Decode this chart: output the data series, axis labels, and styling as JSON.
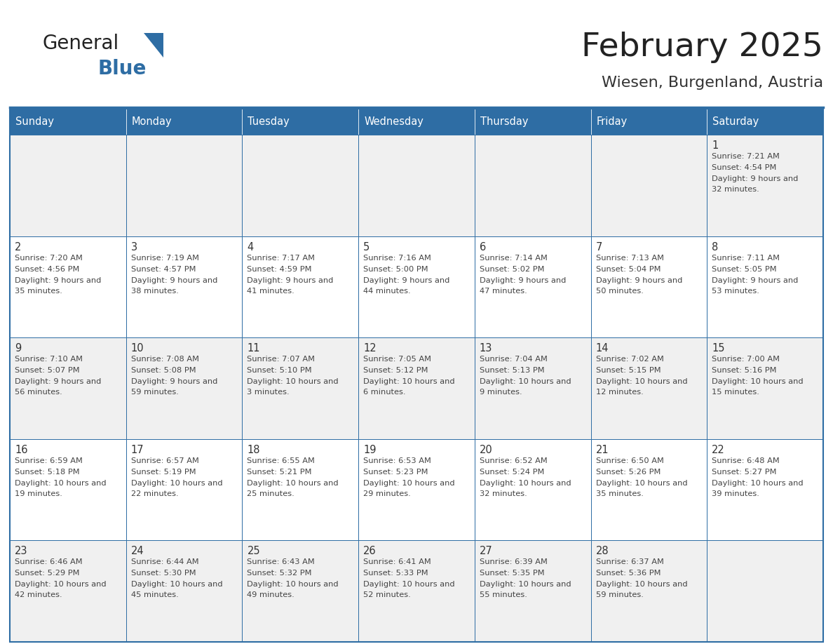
{
  "title": "February 2025",
  "subtitle": "Wiesen, Burgenland, Austria",
  "header_bg": "#2E6DA4",
  "header_text_color": "#FFFFFF",
  "border_color": "#2E6DA4",
  "day_headers": [
    "Sunday",
    "Monday",
    "Tuesday",
    "Wednesday",
    "Thursday",
    "Friday",
    "Saturday"
  ],
  "title_color": "#222222",
  "subtitle_color": "#333333",
  "text_color": "#444444",
  "days": [
    {
      "day": 1,
      "col": 6,
      "row": 0,
      "sunrise": "7:21 AM",
      "sunset": "4:54 PM",
      "daylight": "9 hours and 32 minutes"
    },
    {
      "day": 2,
      "col": 0,
      "row": 1,
      "sunrise": "7:20 AM",
      "sunset": "4:56 PM",
      "daylight": "9 hours and 35 minutes"
    },
    {
      "day": 3,
      "col": 1,
      "row": 1,
      "sunrise": "7:19 AM",
      "sunset": "4:57 PM",
      "daylight": "9 hours and 38 minutes"
    },
    {
      "day": 4,
      "col": 2,
      "row": 1,
      "sunrise": "7:17 AM",
      "sunset": "4:59 PM",
      "daylight": "9 hours and 41 minutes"
    },
    {
      "day": 5,
      "col": 3,
      "row": 1,
      "sunrise": "7:16 AM",
      "sunset": "5:00 PM",
      "daylight": "9 hours and 44 minutes"
    },
    {
      "day": 6,
      "col": 4,
      "row": 1,
      "sunrise": "7:14 AM",
      "sunset": "5:02 PM",
      "daylight": "9 hours and 47 minutes"
    },
    {
      "day": 7,
      "col": 5,
      "row": 1,
      "sunrise": "7:13 AM",
      "sunset": "5:04 PM",
      "daylight": "9 hours and 50 minutes"
    },
    {
      "day": 8,
      "col": 6,
      "row": 1,
      "sunrise": "7:11 AM",
      "sunset": "5:05 PM",
      "daylight": "9 hours and 53 minutes"
    },
    {
      "day": 9,
      "col": 0,
      "row": 2,
      "sunrise": "7:10 AM",
      "sunset": "5:07 PM",
      "daylight": "9 hours and 56 minutes"
    },
    {
      "day": 10,
      "col": 1,
      "row": 2,
      "sunrise": "7:08 AM",
      "sunset": "5:08 PM",
      "daylight": "9 hours and 59 minutes"
    },
    {
      "day": 11,
      "col": 2,
      "row": 2,
      "sunrise": "7:07 AM",
      "sunset": "5:10 PM",
      "daylight": "10 hours and 3 minutes"
    },
    {
      "day": 12,
      "col": 3,
      "row": 2,
      "sunrise": "7:05 AM",
      "sunset": "5:12 PM",
      "daylight": "10 hours and 6 minutes"
    },
    {
      "day": 13,
      "col": 4,
      "row": 2,
      "sunrise": "7:04 AM",
      "sunset": "5:13 PM",
      "daylight": "10 hours and 9 minutes"
    },
    {
      "day": 14,
      "col": 5,
      "row": 2,
      "sunrise": "7:02 AM",
      "sunset": "5:15 PM",
      "daylight": "10 hours and 12 minutes"
    },
    {
      "day": 15,
      "col": 6,
      "row": 2,
      "sunrise": "7:00 AM",
      "sunset": "5:16 PM",
      "daylight": "10 hours and 15 minutes"
    },
    {
      "day": 16,
      "col": 0,
      "row": 3,
      "sunrise": "6:59 AM",
      "sunset": "5:18 PM",
      "daylight": "10 hours and 19 minutes"
    },
    {
      "day": 17,
      "col": 1,
      "row": 3,
      "sunrise": "6:57 AM",
      "sunset": "5:19 PM",
      "daylight": "10 hours and 22 minutes"
    },
    {
      "day": 18,
      "col": 2,
      "row": 3,
      "sunrise": "6:55 AM",
      "sunset": "5:21 PM",
      "daylight": "10 hours and 25 minutes"
    },
    {
      "day": 19,
      "col": 3,
      "row": 3,
      "sunrise": "6:53 AM",
      "sunset": "5:23 PM",
      "daylight": "10 hours and 29 minutes"
    },
    {
      "day": 20,
      "col": 4,
      "row": 3,
      "sunrise": "6:52 AM",
      "sunset": "5:24 PM",
      "daylight": "10 hours and 32 minutes"
    },
    {
      "day": 21,
      "col": 5,
      "row": 3,
      "sunrise": "6:50 AM",
      "sunset": "5:26 PM",
      "daylight": "10 hours and 35 minutes"
    },
    {
      "day": 22,
      "col": 6,
      "row": 3,
      "sunrise": "6:48 AM",
      "sunset": "5:27 PM",
      "daylight": "10 hours and 39 minutes"
    },
    {
      "day": 23,
      "col": 0,
      "row": 4,
      "sunrise": "6:46 AM",
      "sunset": "5:29 PM",
      "daylight": "10 hours and 42 minutes"
    },
    {
      "day": 24,
      "col": 1,
      "row": 4,
      "sunrise": "6:44 AM",
      "sunset": "5:30 PM",
      "daylight": "10 hours and 45 minutes"
    },
    {
      "day": 25,
      "col": 2,
      "row": 4,
      "sunrise": "6:43 AM",
      "sunset": "5:32 PM",
      "daylight": "10 hours and 49 minutes"
    },
    {
      "day": 26,
      "col": 3,
      "row": 4,
      "sunrise": "6:41 AM",
      "sunset": "5:33 PM",
      "daylight": "10 hours and 52 minutes"
    },
    {
      "day": 27,
      "col": 4,
      "row": 4,
      "sunrise": "6:39 AM",
      "sunset": "5:35 PM",
      "daylight": "10 hours and 55 minutes"
    },
    {
      "day": 28,
      "col": 5,
      "row": 4,
      "sunrise": "6:37 AM",
      "sunset": "5:36 PM",
      "daylight": "10 hours and 59 minutes"
    }
  ]
}
